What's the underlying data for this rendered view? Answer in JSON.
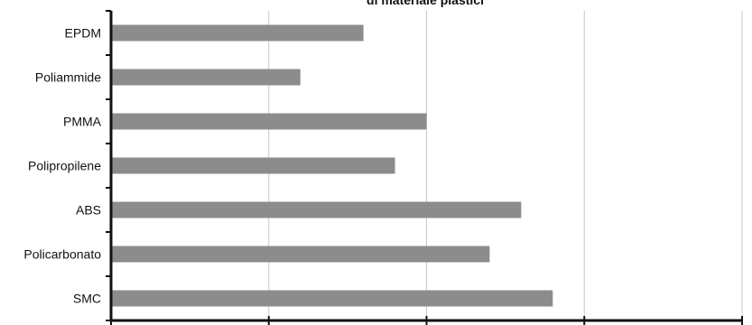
{
  "chart_data": {
    "type": "bar",
    "orientation": "horizontal",
    "title": "di materiale plastici",
    "categories": [
      "EPDM",
      "Poliammide",
      "PMMA",
      "Polipropilene",
      "ABS",
      "Policarbonato",
      "SMC"
    ],
    "values": [
      8,
      6,
      10,
      9,
      13,
      12,
      14
    ],
    "xlim": [
      0,
      20
    ],
    "xticks": [
      "0",
      "5",
      "10",
      "15",
      "20"
    ],
    "xlabel": "",
    "ylabel": "",
    "grid": "vertical",
    "legend": "none",
    "bar_color": "#8c8c8c"
  }
}
